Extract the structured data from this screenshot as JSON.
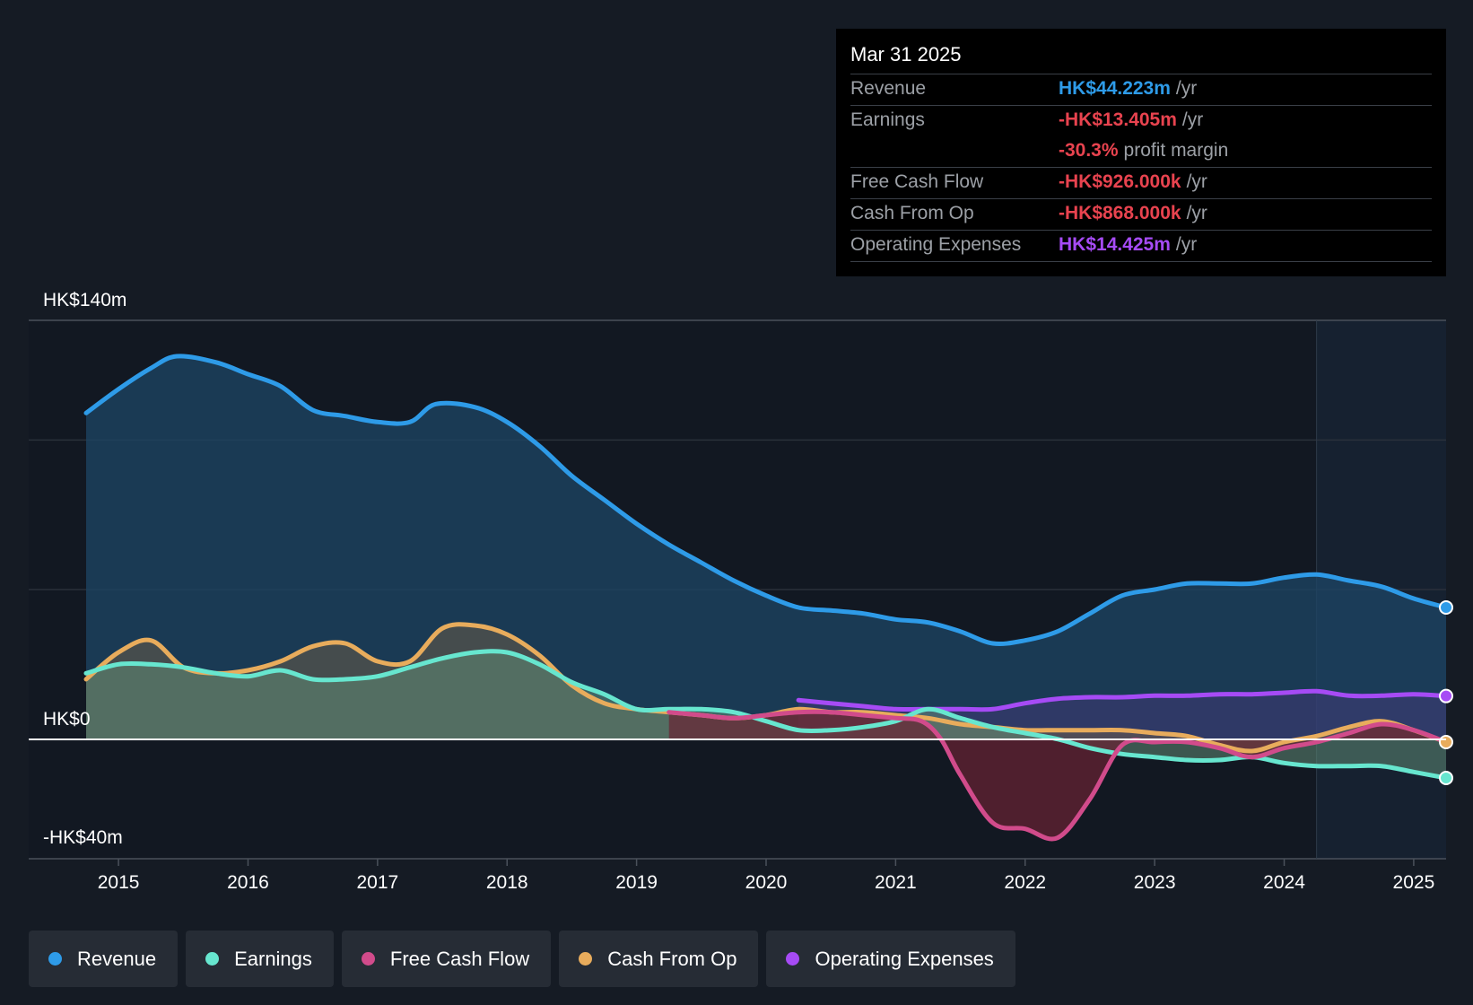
{
  "colors": {
    "revenue": "#2e9be8",
    "earnings": "#67e6cf",
    "free_cash_flow": "#d14b8b",
    "cash_from_op": "#e8ac5c",
    "operating_expenses": "#a64bf5",
    "background": "#151b24",
    "negative": "#e8434f"
  },
  "tooltip": {
    "date": "Mar 31 2025",
    "rows": [
      {
        "label": "Revenue",
        "value": "HK$44.223m",
        "unit": "/yr",
        "color": "#2e9be8"
      },
      {
        "label": "Earnings",
        "value": "-HK$13.405m",
        "unit": "/yr",
        "color": "#e8434f"
      },
      {
        "label": "",
        "value": "-30.3%",
        "unit": "profit margin",
        "color": "#e8434f"
      },
      {
        "label": "Free Cash Flow",
        "value": "-HK$926.000k",
        "unit": "/yr",
        "color": "#e8434f"
      },
      {
        "label": "Cash From Op",
        "value": "-HK$868.000k",
        "unit": "/yr",
        "color": "#e8434f"
      },
      {
        "label": "Operating Expenses",
        "value": "HK$14.425m",
        "unit": "/yr",
        "color": "#a64bf5"
      }
    ]
  },
  "legend": [
    {
      "label": "Revenue",
      "color": "#2e9be8"
    },
    {
      "label": "Earnings",
      "color": "#67e6cf"
    },
    {
      "label": "Free Cash Flow",
      "color": "#d14b8b"
    },
    {
      "label": "Cash From Op",
      "color": "#e8ac5c"
    },
    {
      "label": "Operating Expenses",
      "color": "#a64bf5"
    }
  ],
  "chart_data": {
    "type": "line",
    "title": "",
    "xlabel": "",
    "ylabel": "",
    "x_range": [
      2014.3,
      2025.25
    ],
    "ylim": [
      -40,
      140
    ],
    "y_tick_labels": [
      {
        "value": 140,
        "label": "HK$140m"
      },
      {
        "value": 0,
        "label": "HK$0"
      },
      {
        "value": -40,
        "label": "-HK$40m"
      }
    ],
    "gridlines": [
      140,
      100,
      50
    ],
    "x_ticks": [
      2015,
      2016,
      2017,
      2018,
      2019,
      2020,
      2021,
      2022,
      2023,
      2024,
      2025
    ],
    "x_tick_labels": [
      "2015",
      "2016",
      "2017",
      "2018",
      "2019",
      "2020",
      "2021",
      "2022",
      "2023",
      "2024",
      "2025"
    ],
    "forecast_start": 2024.25,
    "series": [
      {
        "name": "Revenue",
        "key": "revenue",
        "x": [
          2014.75,
          2015.0,
          2015.25,
          2015.45,
          2015.75,
          2016.0,
          2016.25,
          2016.5,
          2016.75,
          2017.0,
          2017.25,
          2017.45,
          2017.75,
          2018.0,
          2018.25,
          2018.5,
          2018.75,
          2019.0,
          2019.25,
          2019.5,
          2019.75,
          2020.0,
          2020.25,
          2020.5,
          2020.75,
          2021.0,
          2021.25,
          2021.5,
          2021.75,
          2022.0,
          2022.25,
          2022.5,
          2022.75,
          2023.0,
          2023.25,
          2023.5,
          2023.75,
          2024.0,
          2024.25,
          2024.5,
          2024.75,
          2025.0,
          2025.25
        ],
        "values": [
          109,
          117,
          124,
          128,
          126,
          122,
          118,
          110,
          108,
          106,
          106,
          112,
          111,
          106,
          98,
          88,
          80,
          72,
          65,
          59,
          53,
          48,
          44,
          43,
          42,
          40,
          39,
          36,
          32,
          33,
          36,
          42,
          48,
          50,
          52,
          52,
          52,
          54,
          55,
          53,
          51,
          47,
          44
        ]
      },
      {
        "name": "Earnings",
        "key": "earnings",
        "x": [
          2014.75,
          2015.0,
          2015.25,
          2015.5,
          2015.75,
          2016.0,
          2016.25,
          2016.5,
          2016.75,
          2017.0,
          2017.25,
          2017.5,
          2017.75,
          2018.0,
          2018.25,
          2018.5,
          2018.75,
          2019.0,
          2019.25,
          2019.5,
          2019.75,
          2020.0,
          2020.25,
          2020.5,
          2020.75,
          2021.0,
          2021.25,
          2021.5,
          2021.75,
          2022.0,
          2022.25,
          2022.5,
          2022.75,
          2023.0,
          2023.25,
          2023.5,
          2023.75,
          2024.0,
          2024.25,
          2024.5,
          2024.75,
          2025.0,
          2025.25
        ],
        "values": [
          22,
          25,
          25,
          24,
          22,
          21,
          23,
          20,
          20,
          21,
          24,
          27,
          29,
          29,
          25,
          19,
          15,
          10,
          10,
          10,
          9,
          6,
          3,
          3,
          4,
          6,
          10,
          7,
          4,
          2,
          0,
          -3,
          -5,
          -6,
          -7,
          -7,
          -6,
          -8,
          -9,
          -9,
          -9,
          -11,
          -13
        ]
      },
      {
        "name": "Free Cash Flow",
        "key": "free_cash_flow",
        "x": [
          2019.25,
          2019.5,
          2019.75,
          2020.0,
          2020.25,
          2020.5,
          2020.75,
          2021.0,
          2021.2,
          2021.35,
          2021.5,
          2021.75,
          2022.0,
          2022.25,
          2022.5,
          2022.75,
          2023.0,
          2023.25,
          2023.5,
          2023.75,
          2024.0,
          2024.25,
          2024.5,
          2024.75,
          2025.0,
          2025.25
        ],
        "values": [
          9,
          8,
          7,
          8,
          9,
          9,
          8,
          7,
          6,
          0,
          -12,
          -28,
          -30,
          -33,
          -20,
          -2,
          -1,
          -1,
          -3,
          -6,
          -3,
          -1,
          2,
          5,
          3,
          -1
        ]
      },
      {
        "name": "Cash From Op",
        "key": "cash_from_op",
        "x": [
          2014.75,
          2015.0,
          2015.25,
          2015.5,
          2015.75,
          2016.0,
          2016.25,
          2016.5,
          2016.75,
          2017.0,
          2017.25,
          2017.5,
          2017.75,
          2018.0,
          2018.25,
          2018.5,
          2018.75,
          2019.0,
          2019.25,
          2019.5,
          2019.75,
          2020.0,
          2020.25,
          2020.5,
          2020.75,
          2021.0,
          2021.25,
          2021.5,
          2021.75,
          2022.0,
          2022.25,
          2022.5,
          2022.75,
          2023.0,
          2023.25,
          2023.5,
          2023.75,
          2024.0,
          2024.25,
          2024.5,
          2024.75,
          2025.0,
          2025.25
        ],
        "values": [
          20,
          29,
          33,
          24,
          22,
          23,
          26,
          31,
          32,
          26,
          26,
          37,
          38,
          35,
          28,
          18,
          12,
          10,
          9,
          8,
          7,
          8,
          10,
          9,
          9,
          8,
          7,
          5,
          4,
          3,
          3,
          3,
          3,
          2,
          1,
          -2,
          -4,
          -1,
          1,
          4,
          6,
          3,
          -1
        ]
      },
      {
        "name": "Operating Expenses",
        "key": "operating_expenses",
        "x": [
          2020.25,
          2020.5,
          2020.75,
          2021.0,
          2021.25,
          2021.5,
          2021.75,
          2022.0,
          2022.25,
          2022.5,
          2022.75,
          2023.0,
          2023.25,
          2023.5,
          2023.75,
          2024.0,
          2024.25,
          2024.5,
          2024.75,
          2025.0,
          2025.25
        ],
        "values": [
          13,
          12,
          11,
          10,
          10,
          10,
          10,
          12,
          13.5,
          14,
          14,
          14.5,
          14.5,
          15,
          15,
          15.5,
          16,
          14.5,
          14.5,
          15,
          14.4
        ]
      }
    ]
  }
}
